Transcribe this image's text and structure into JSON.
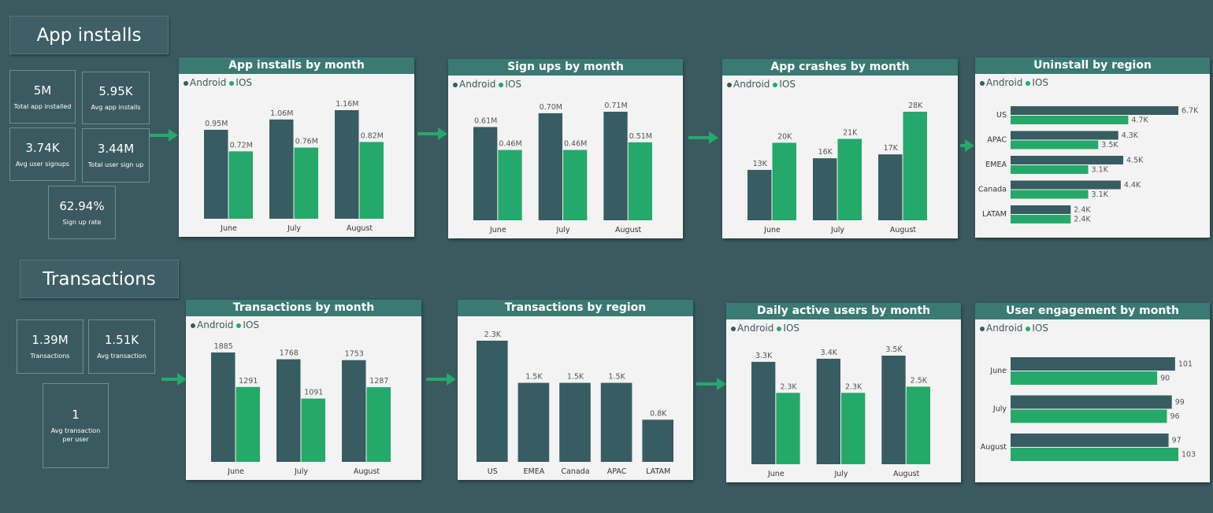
{
  "colors": {
    "android": "#375c62",
    "ios": "#25a96a",
    "label": "#555555"
  },
  "sections": {
    "installs": "App installs",
    "transactions": "Transactions"
  },
  "kpis": {
    "total_app_installed": {
      "value": "5M",
      "label": "Total app installed"
    },
    "avg_app_installs": {
      "value": "5.95K",
      "label": "Avg app installs"
    },
    "avg_user_signups": {
      "value": "3.74K",
      "label": "Avg user signups"
    },
    "total_user_sign_up": {
      "value": "3.44M",
      "label": "Total user sign up"
    },
    "sign_up_rate": {
      "value": "62.94%",
      "label": "Sign up rate"
    },
    "transactions": {
      "value": "1.39M",
      "label": "Transactions"
    },
    "avg_transaction": {
      "value": "1.51K",
      "label": "Avg transaction"
    },
    "avg_transaction_per_user": {
      "value": "1",
      "label": "Avg transaction\nper user"
    }
  },
  "chart_data": [
    {
      "id": "installs",
      "type": "bar",
      "title": "App installs by month",
      "categories": [
        "June",
        "July",
        "August"
      ],
      "series": [
        {
          "name": "Android",
          "values": [
            0.95,
            1.06,
            1.16
          ],
          "labels": [
            "0.95M",
            "1.06M",
            "1.16M"
          ]
        },
        {
          "name": "IOS",
          "values": [
            0.72,
            0.76,
            0.82
          ],
          "labels": [
            "0.72M",
            "0.76M",
            "0.82M"
          ]
        }
      ]
    },
    {
      "id": "signups",
      "type": "bar",
      "title": "Sign ups by month",
      "categories": [
        "June",
        "July",
        "August"
      ],
      "series": [
        {
          "name": "Android",
          "values": [
            0.61,
            0.7,
            0.71
          ],
          "labels": [
            "0.61M",
            "0.70M",
            "0.71M"
          ]
        },
        {
          "name": "IOS",
          "values": [
            0.46,
            0.46,
            0.51
          ],
          "labels": [
            "0.46M",
            "0.46M",
            "0.51M"
          ]
        }
      ]
    },
    {
      "id": "crashes",
      "type": "bar",
      "title": "App crashes by month",
      "categories": [
        "June",
        "July",
        "August"
      ],
      "series": [
        {
          "name": "Android",
          "values": [
            13,
            16,
            17
          ],
          "labels": [
            "13K",
            "16K",
            "17K"
          ]
        },
        {
          "name": "IOS",
          "values": [
            20,
            21,
            28
          ],
          "labels": [
            "20K",
            "21K",
            "28K"
          ]
        }
      ]
    },
    {
      "id": "uninstall",
      "type": "hbar",
      "title": "Uninstall by region",
      "categories": [
        "US",
        "APAC",
        "EMEA",
        "Canada",
        "LATAM"
      ],
      "series": [
        {
          "name": "Android",
          "values": [
            6.7,
            4.3,
            4.5,
            4.4,
            2.4
          ],
          "labels": [
            "6.7K",
            "4.3K",
            "4.5K",
            "4.4K",
            "2.4K"
          ]
        },
        {
          "name": "IOS",
          "values": [
            4.7,
            3.5,
            3.1,
            3.1,
            2.4
          ],
          "labels": [
            "4.7K",
            "3.5K",
            "3.1K",
            "3.1K",
            "2.4K"
          ]
        }
      ]
    },
    {
      "id": "transmonth",
      "type": "bar",
      "title": "Transactions by month",
      "categories": [
        "June",
        "July",
        "August"
      ],
      "series": [
        {
          "name": "Android",
          "values": [
            1885,
            1768,
            1753
          ],
          "labels": [
            "1885",
            "1768",
            "1753"
          ]
        },
        {
          "name": "IOS",
          "values": [
            1291,
            1091,
            1287
          ],
          "labels": [
            "1291",
            "1091",
            "1287"
          ]
        }
      ]
    },
    {
      "id": "transregion",
      "type": "bar",
      "title": "Transactions by region",
      "categories": [
        "US",
        "EMEA",
        "Canada",
        "APAC",
        "LATAM"
      ],
      "series": [
        {
          "values": [
            2.3,
            1.5,
            1.5,
            1.5,
            0.8
          ],
          "labels": [
            "2.3K",
            "1.5K",
            "1.5K",
            "1.5K",
            "0.8K"
          ]
        }
      ]
    },
    {
      "id": "dau",
      "type": "bar",
      "title": "Daily active users by month",
      "categories": [
        "June",
        "July",
        "August"
      ],
      "series": [
        {
          "name": "Android",
          "values": [
            3.3,
            3.4,
            3.5
          ],
          "labels": [
            "3.3K",
            "3.4K",
            "3.5K"
          ]
        },
        {
          "name": "IOS",
          "values": [
            2.3,
            2.3,
            2.5
          ],
          "labels": [
            "2.3K",
            "2.3K",
            "2.5K"
          ]
        }
      ]
    },
    {
      "id": "engagement",
      "type": "hbar",
      "title": "User engagement by month",
      "categories": [
        "June",
        "July",
        "August"
      ],
      "series": [
        {
          "name": "Android",
          "values": [
            101,
            99,
            97
          ],
          "labels": [
            "101",
            "99",
            "97"
          ]
        },
        {
          "name": "IOS",
          "values": [
            90,
            96,
            103
          ],
          "labels": [
            "90",
            "96",
            "103"
          ]
        }
      ]
    }
  ]
}
